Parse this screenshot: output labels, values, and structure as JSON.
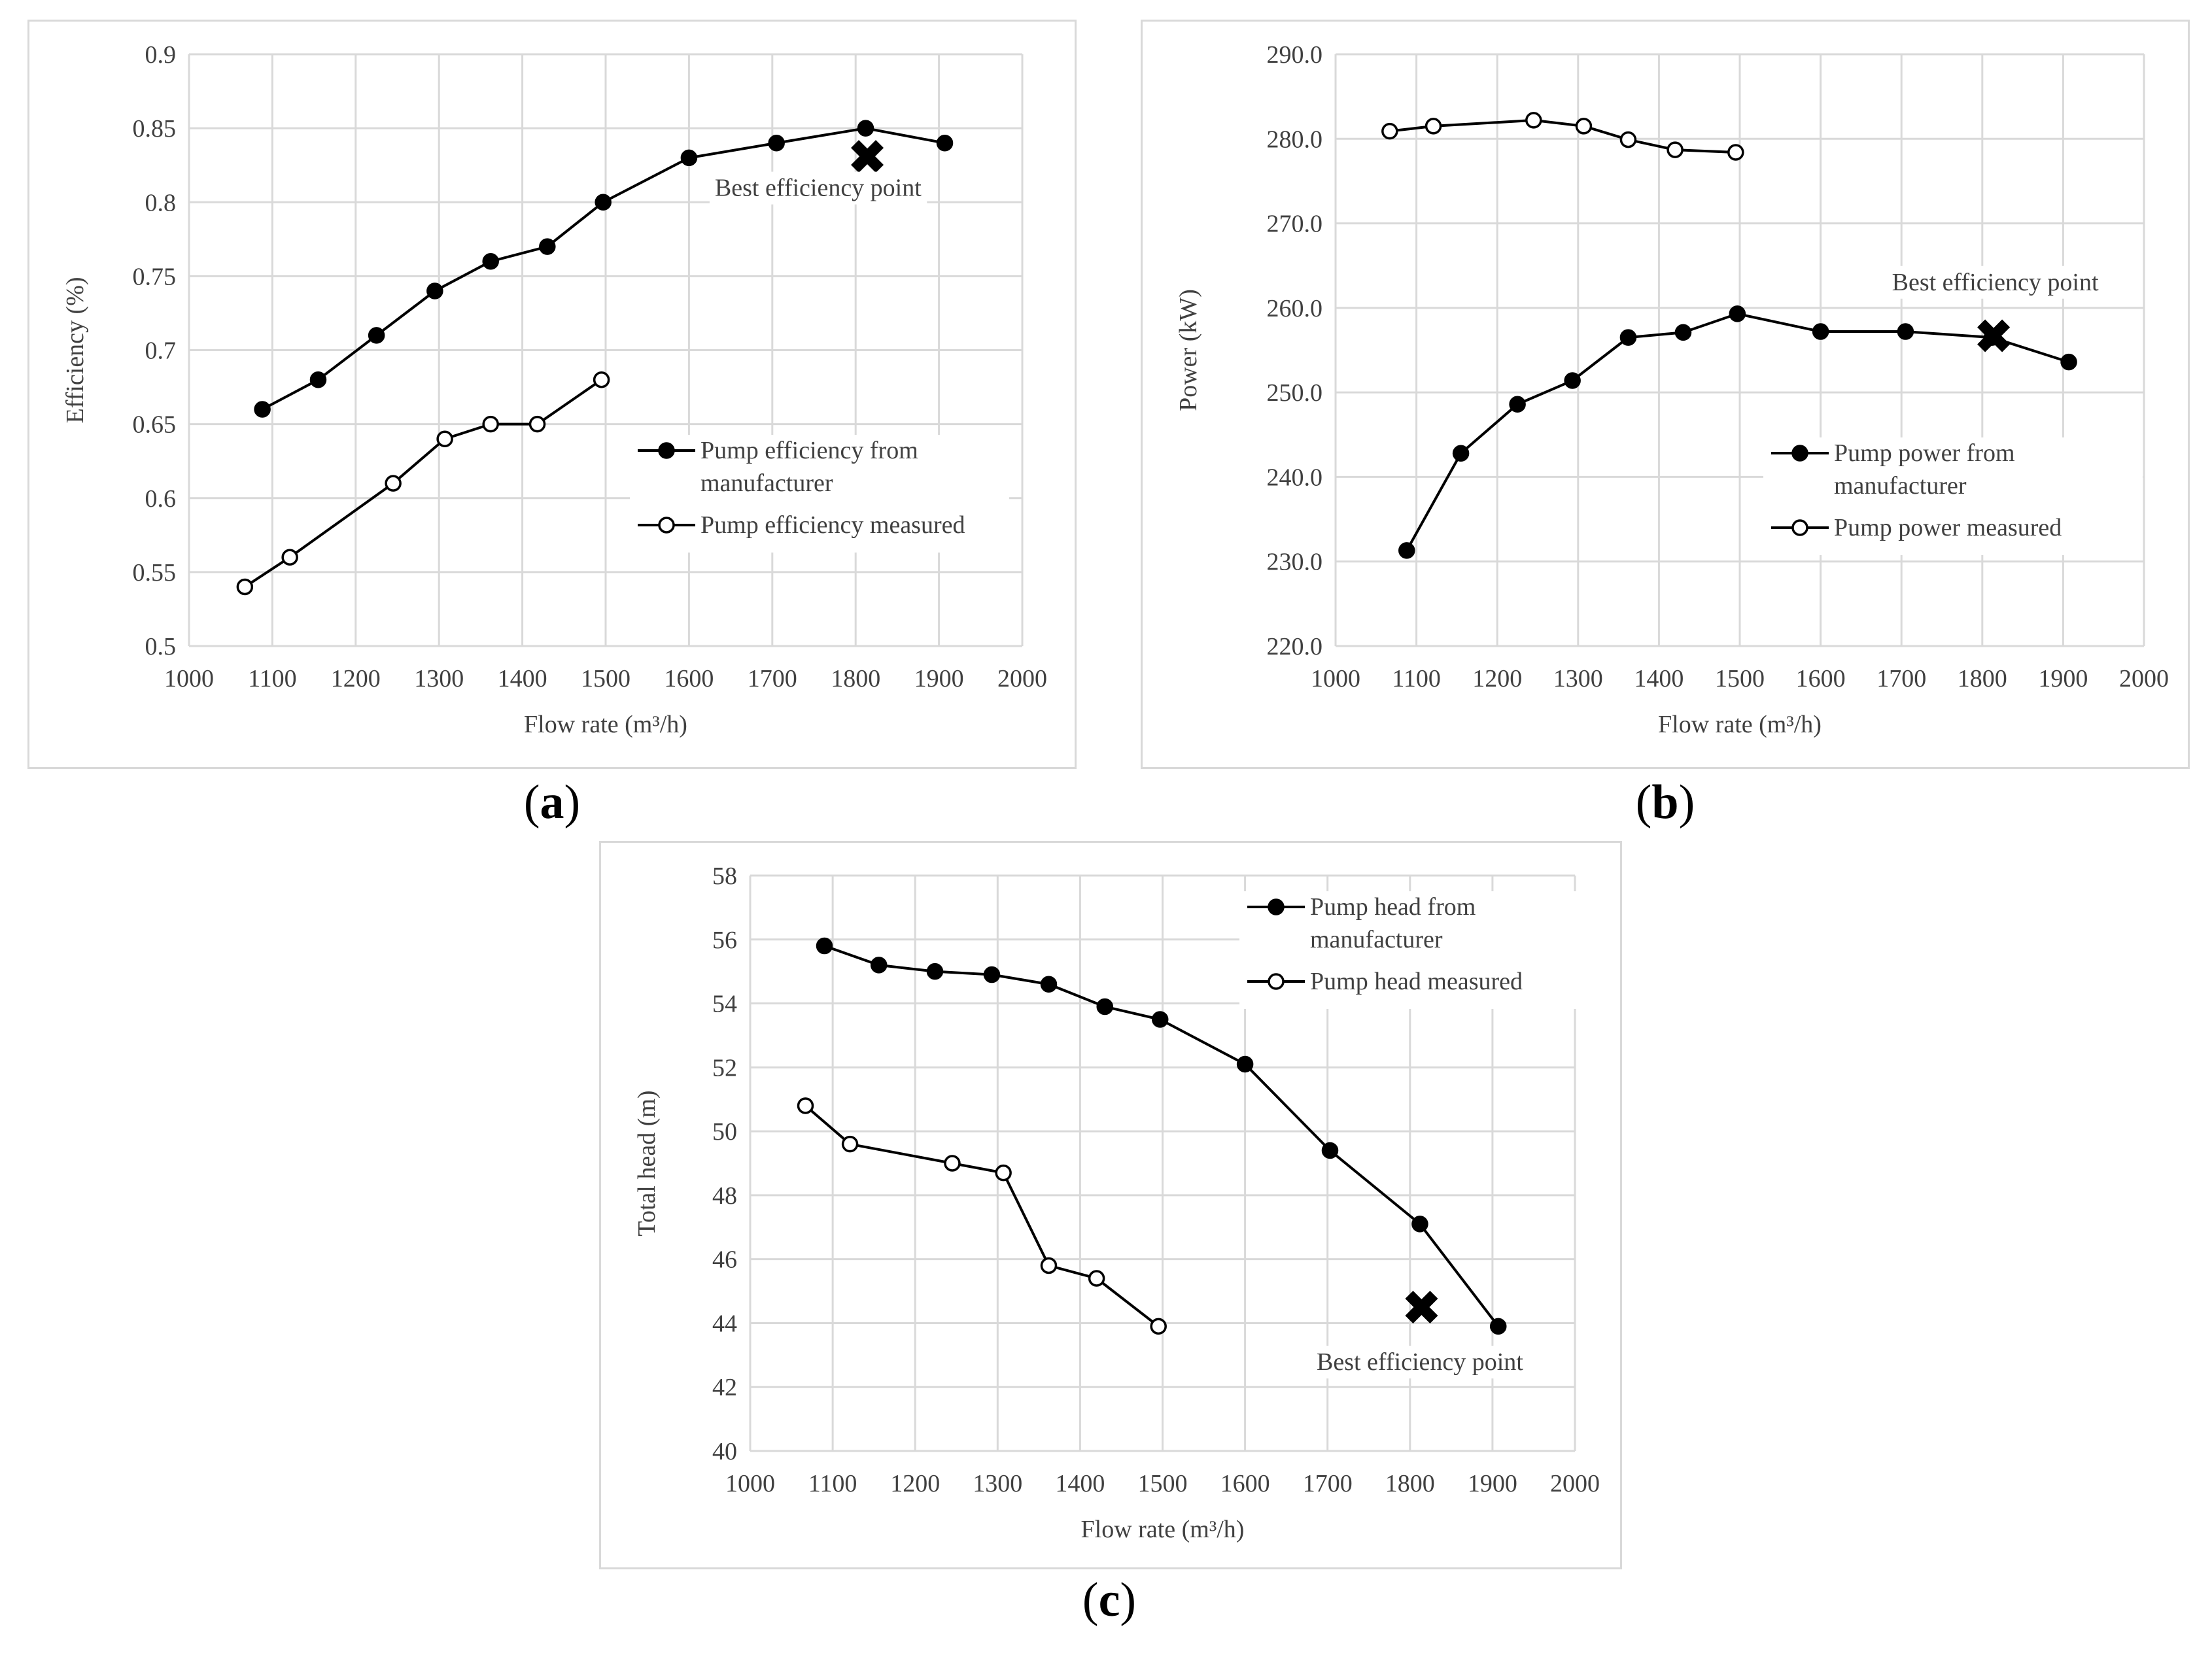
{
  "colors": {
    "grid": "#d9d9d9",
    "line": "#000000",
    "border": "#d9d9d9",
    "text": "#404040"
  },
  "captions": [
    {
      "letter": "a",
      "open": "(",
      "close": ")"
    },
    {
      "letter": "b",
      "open": "(",
      "close": ")"
    },
    {
      "letter": "c",
      "open": "(",
      "close": ")"
    }
  ],
  "chart_data": [
    {
      "id": "a",
      "type": "line",
      "ylabel": "Efficiency (%)",
      "xlabel": "Flow rate (m³/h)",
      "xlim": [
        1000,
        2000
      ],
      "ylim": [
        0.5,
        0.9
      ],
      "xticks": [
        "1000",
        "1100",
        "1200",
        "1300",
        "1400",
        "1500",
        "1600",
        "1700",
        "1800",
        "1900",
        "2000"
      ],
      "yticks": [
        "0.5",
        "0.55",
        "0.6",
        "0.65",
        "0.7",
        "0.75",
        "0.8",
        "0.85",
        "0.9"
      ],
      "legend_position": "right-middle",
      "series": [
        {
          "name": "Pump efficiency from manufacturer",
          "legend_lines": [
            "Pump efficiency from",
            "manufacturer"
          ],
          "marker": "filled",
          "x": [
            1088,
            1155,
            1225,
            1295,
            1362,
            1430,
            1497,
            1600,
            1705,
            1812,
            1907
          ],
          "y": [
            0.66,
            0.68,
            0.71,
            0.74,
            0.76,
            0.77,
            0.8,
            0.83,
            0.84,
            0.85,
            0.84
          ]
        },
        {
          "name": "Pump efficiency measured",
          "legend_lines": [
            "Pump efficiency measured"
          ],
          "marker": "open",
          "x": [
            1067,
            1121,
            1245,
            1307,
            1362,
            1418,
            1495
          ],
          "y": [
            0.54,
            0.56,
            0.61,
            0.64,
            0.65,
            0.65,
            0.68
          ]
        }
      ],
      "bep": {
        "x": 1814,
        "y": 0.831,
        "label": "Best efficiency  point",
        "label_x": 1755,
        "label_y": 0.81,
        "anchor": "middle"
      }
    },
    {
      "id": "b",
      "type": "line",
      "ylabel": "Power (kW)",
      "xlabel": "Flow rate (m³/h)",
      "xlim": [
        1000,
        2000
      ],
      "ylim": [
        220,
        290
      ],
      "xticks": [
        "1000",
        "1100",
        "1200",
        "1300",
        "1400",
        "1500",
        "1600",
        "1700",
        "1800",
        "1900",
        "2000"
      ],
      "yticks": [
        "220.0",
        "230.0",
        "240.0",
        "250.0",
        "260.0",
        "270.0",
        "280.0",
        "290.0"
      ],
      "legend_position": "right-middle",
      "series": [
        {
          "name": "Pump power from manufacturer",
          "legend_lines": [
            "Pump power from",
            "manufacturer"
          ],
          "marker": "filled",
          "x": [
            1088,
            1155,
            1225,
            1293,
            1362,
            1430,
            1497,
            1600,
            1705,
            1812,
            1907
          ],
          "y": [
            231.3,
            242.8,
            248.6,
            251.4,
            256.5,
            257.1,
            259.3,
            257.2,
            257.2,
            256.5,
            253.6
          ]
        },
        {
          "name": "Pump power measured",
          "legend_lines": [
            "Pump power measured"
          ],
          "marker": "open",
          "x": [
            1067,
            1121,
            1245,
            1307,
            1362,
            1420,
            1495
          ],
          "y": [
            280.9,
            281.5,
            282.2,
            281.5,
            279.9,
            278.7,
            278.4
          ]
        }
      ],
      "bep": {
        "x": 1814,
        "y": 256.7,
        "label": "Best efficiency point",
        "label_x": 1816,
        "label_y": 263.1,
        "anchor": "middle"
      }
    },
    {
      "id": "c",
      "type": "line",
      "ylabel": "Total head (m)",
      "xlabel": "Flow rate (m³/h)",
      "xlim": [
        1000,
        2000
      ],
      "ylim": [
        40,
        58
      ],
      "xticks": [
        "1000",
        "1100",
        "1200",
        "1300",
        "1400",
        "1500",
        "1600",
        "1700",
        "1800",
        "1900",
        "2000"
      ],
      "yticks": [
        "40",
        "42",
        "44",
        "46",
        "48",
        "50",
        "52",
        "54",
        "56",
        "58"
      ],
      "legend_position": "top-right",
      "series": [
        {
          "name": "Pump head from manufacturer",
          "legend_lines": [
            "Pump head from",
            "manufacturer"
          ],
          "marker": "filled",
          "x": [
            1090,
            1156,
            1224,
            1293,
            1362,
            1430,
            1497,
            1600,
            1703,
            1812,
            1907
          ],
          "y": [
            55.8,
            55.2,
            55.0,
            54.9,
            54.6,
            53.9,
            53.5,
            52.1,
            49.4,
            47.1,
            43.9
          ]
        },
        {
          "name": "Pump head measured",
          "legend_lines": [
            "Pump head measured"
          ],
          "marker": "open",
          "x": [
            1067,
            1121,
            1245,
            1307,
            1362,
            1420,
            1495
          ],
          "y": [
            50.8,
            49.6,
            49.0,
            48.7,
            45.8,
            45.4,
            43.9
          ]
        }
      ],
      "bep": {
        "x": 1814,
        "y": 44.5,
        "label": "Best efficiency  point",
        "label_x": 1812,
        "label_y": 42.8,
        "anchor": "middle"
      }
    }
  ]
}
